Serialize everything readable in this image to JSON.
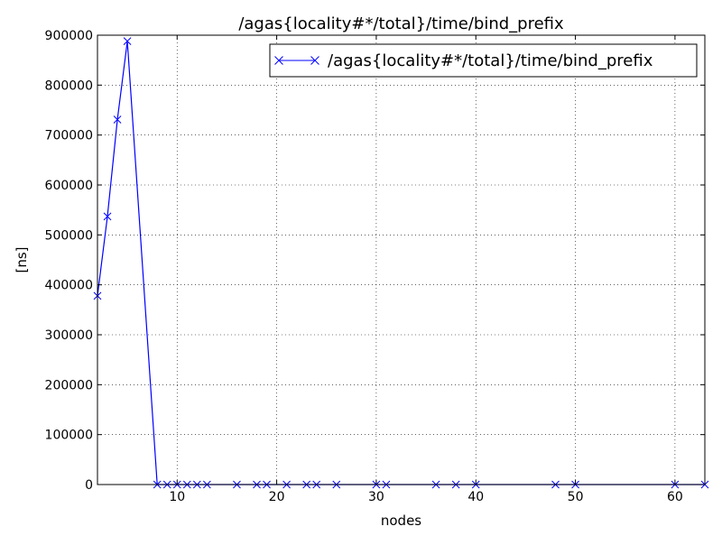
{
  "chart_data": {
    "type": "line",
    "title": "/agas{locality#*/total}/time/bind_prefix",
    "xlabel": "nodes",
    "ylabel": "[ns]",
    "xlim": [
      2,
      63
    ],
    "ylim": [
      0,
      900000
    ],
    "xticks": [
      10,
      20,
      30,
      40,
      50,
      60
    ],
    "yticks": [
      0,
      100000,
      200000,
      300000,
      400000,
      500000,
      600000,
      700000,
      800000,
      900000
    ],
    "grid": true,
    "legend_position": "top-right",
    "marker": "x",
    "series": [
      {
        "name": "/agas{locality#*/total}/time/bind_prefix",
        "color": "#0000ff",
        "x": [
          2,
          3,
          4,
          5,
          8,
          9,
          10,
          11,
          12,
          13,
          16,
          18,
          19,
          21,
          23,
          24,
          26,
          30,
          31,
          36,
          38,
          40,
          48,
          50,
          60,
          63
        ],
        "y": [
          378000,
          537000,
          731000,
          888000,
          0,
          0,
          0,
          0,
          0,
          0,
          0,
          0,
          0,
          0,
          0,
          0,
          0,
          0,
          0,
          0,
          0,
          0,
          0,
          0,
          0,
          0
        ]
      }
    ]
  }
}
